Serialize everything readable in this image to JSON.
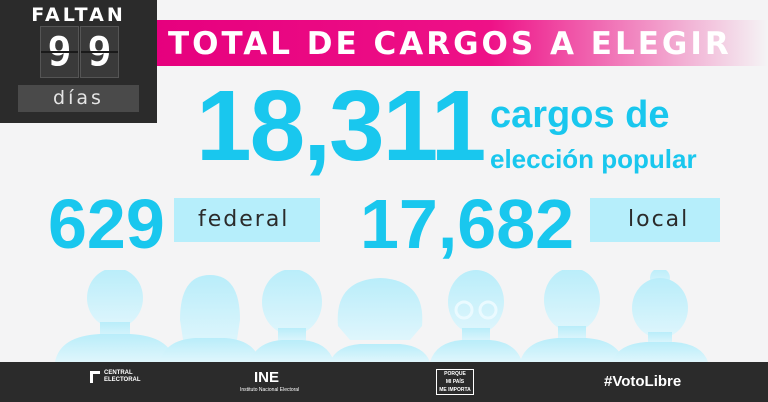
{
  "countdown": {
    "label": "FALTAN",
    "digit1": "9",
    "digit2": "9",
    "unit": "días"
  },
  "banner": {
    "title": "TOTAL DE CARGOS A ELEGIR"
  },
  "total": {
    "number": "18,311",
    "label_line1": "cargos de",
    "label_line2": "elección popular"
  },
  "federal": {
    "number": "629",
    "label": "federal"
  },
  "local": {
    "number": "17,682",
    "label": "local"
  },
  "footer": {
    "central_line1": "CENTRAL",
    "central_line2": "ELECTORAL",
    "ine": "INE",
    "ine_sub": "Instituto Nacional Electoral",
    "porque_line1": "PORQUE",
    "porque_line2": "MI PAÍS",
    "porque_line3": "ME IMPORTA",
    "hashtag": "#VotoLibre"
  },
  "colors": {
    "accent_cyan": "#19c7ee",
    "pill_light": "#b6eefb",
    "banner_pink": "#e6007e",
    "dark": "#2b2b2b"
  }
}
